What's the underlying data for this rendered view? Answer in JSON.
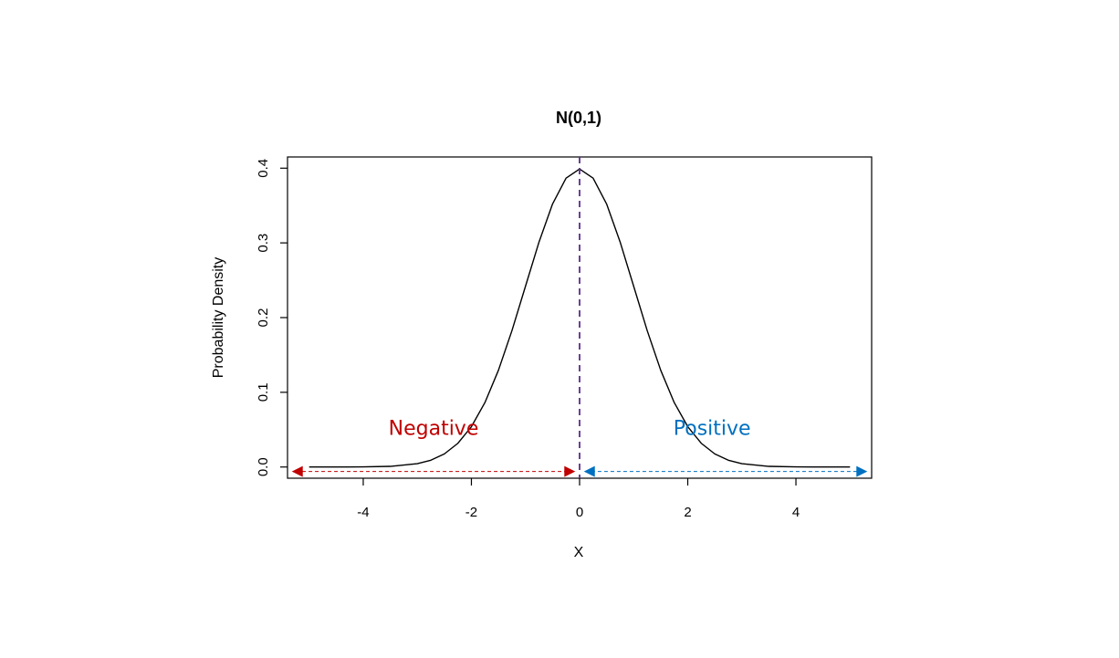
{
  "chart_data": {
    "type": "line",
    "title": "N(0,1)",
    "xlabel": "X",
    "ylabel": "Probability Density",
    "xlim": [
      -5.4,
      5.4
    ],
    "ylim": [
      -0.015,
      0.415
    ],
    "x_ticks": [
      -4,
      -2,
      0,
      2,
      4
    ],
    "x_tick_labels": [
      "-4",
      "-2",
      "0",
      "2",
      "4"
    ],
    "y_ticks": [
      0.0,
      0.1,
      0.2,
      0.3,
      0.4
    ],
    "y_tick_labels": [
      "0.0",
      "0.1",
      "0.2",
      "0.3",
      "0.4"
    ],
    "grid": false,
    "series": [
      {
        "color": "#000000",
        "x": [
          -5,
          -4.5,
          -4,
          -3.5,
          -3,
          -2.75,
          -2.5,
          -2.25,
          -2,
          -1.75,
          -1.5,
          -1.25,
          -1,
          -0.75,
          -0.5,
          -0.25,
          0,
          0.25,
          0.5,
          0.75,
          1,
          1.25,
          1.5,
          1.75,
          2,
          2.25,
          2.5,
          2.75,
          3,
          3.5,
          4,
          4.5,
          5
        ],
        "y": [
          1.5e-06,
          1.6e-05,
          0.000134,
          0.000873,
          0.004432,
          0.009094,
          0.017528,
          0.03174,
          0.053991,
          0.086277,
          0.129518,
          0.182649,
          0.241971,
          0.301137,
          0.352065,
          0.386668,
          0.398942,
          0.386668,
          0.352065,
          0.301137,
          0.241971,
          0.182649,
          0.129518,
          0.086277,
          0.053991,
          0.03174,
          0.017528,
          0.009094,
          0.004432,
          0.000873,
          0.000134,
          1.6e-05,
          1.5e-06
        ]
      }
    ],
    "vline": {
      "x": 0,
      "color": "#5B2C8F",
      "style": "dashed"
    },
    "annotations": [
      {
        "text": "Negative",
        "x": -2.7,
        "y": 0.043,
        "color": "#C00000"
      },
      {
        "text": "Positive",
        "x": 2.45,
        "y": 0.043,
        "color": "#0070C0"
      }
    ],
    "arrows": [
      {
        "from": -0.1,
        "to": -5.3,
        "y": -0.006,
        "color": "#C00000"
      },
      {
        "from": 0.1,
        "to": 5.3,
        "y": -0.006,
        "color": "#0070C0"
      }
    ]
  }
}
